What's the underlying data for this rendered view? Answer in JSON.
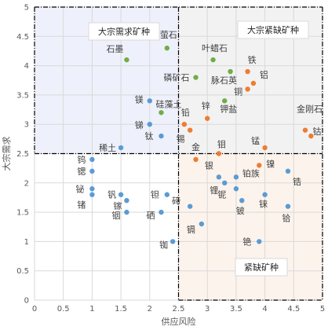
{
  "chart_data": {
    "type": "scatter",
    "xlabel": "供应风险",
    "ylabel": "大宗需求",
    "xlim": [
      0,
      5
    ],
    "ylim": [
      0,
      5
    ],
    "x_ticks": [
      "0",
      "0.5",
      "1",
      "1.5",
      "2",
      "2.5",
      "3",
      "3.5",
      "4",
      "4.5",
      "5"
    ],
    "y_ticks": [
      "0",
      "0.5",
      "1",
      "1.5",
      "2",
      "2.5",
      "3",
      "3.5",
      "4",
      "4.5",
      "5"
    ],
    "grid": true,
    "thresholds": {
      "x": 2.5,
      "y": 2.5
    },
    "regions": [
      {
        "label": "大宗需求矿种",
        "x": [
          0,
          2.5
        ],
        "y": [
          2.5,
          5
        ],
        "fill": "#eef1fb"
      },
      {
        "label": "大宗紧缺矿种",
        "x": [
          2.5,
          5
        ],
        "y": [
          2.5,
          5
        ],
        "fill": "#f2f2f2"
      },
      {
        "label": "紧缺矿种",
        "x": [
          2.5,
          5
        ],
        "y": [
          0,
          2.5
        ],
        "fill": "#fcf3ec"
      }
    ],
    "series": [
      {
        "color": "#70ad47",
        "points": [
          {
            "label": "石墨",
            "x": 1.6,
            "y": 4.1
          },
          {
            "label": "萤石",
            "x": 2.3,
            "y": 4.3
          },
          {
            "label": "叶蜡石",
            "x": 3.1,
            "y": 4.1
          },
          {
            "label": "磷矿石",
            "x": 2.8,
            "y": 3.8
          },
          {
            "label": "脉石英",
            "x": 3.4,
            "y": 3.9
          },
          {
            "label": "硅藻土",
            "x": 2.2,
            "y": 3.2
          },
          {
            "label": "钾盐",
            "x": 3.3,
            "y": 3.4
          }
        ]
      },
      {
        "color": "#ed7d31",
        "points": [
          {
            "label": "铁",
            "x": 3.7,
            "y": 3.9
          },
          {
            "label": "铝",
            "x": 3.8,
            "y": 3.7
          },
          {
            "label": "铜",
            "x": 3.7,
            "y": 3.6
          },
          {
            "label": "铅",
            "x": 2.6,
            "y": 3.0
          },
          {
            "label": "锌",
            "x": 3.0,
            "y": 3.1
          },
          {
            "label": "锡",
            "x": 2.7,
            "y": 2.9
          },
          {
            "label": "金",
            "x": 2.8,
            "y": 2.4
          },
          {
            "label": "钼",
            "x": 3.2,
            "y": 2.5
          },
          {
            "label": "锰",
            "x": 4.0,
            "y": 2.6
          },
          {
            "label": "镍",
            "x": 3.9,
            "y": 2.3
          },
          {
            "label": "金刚石",
            "x": 4.7,
            "y": 2.9
          },
          {
            "label": "钴",
            "x": 4.8,
            "y": 2.8
          }
        ]
      },
      {
        "color": "#5b9bd5",
        "points": [
          {
            "label": "镁",
            "x": 2.0,
            "y": 3.4
          },
          {
            "label": "锑",
            "x": 2.0,
            "y": 3.0
          },
          {
            "label": "钛",
            "x": 2.2,
            "y": 2.8
          },
          {
            "label": "稀土",
            "x": 1.5,
            "y": 2.6
          },
          {
            "label": "钨",
            "x": 1.0,
            "y": 2.4
          },
          {
            "label": "锶",
            "x": 1.0,
            "y": 2.2
          },
          {
            "label": "铋",
            "x": 1.0,
            "y": 1.9
          },
          {
            "label": "锗",
            "x": 1.0,
            "y": 1.8
          },
          {
            "label": "钒",
            "x": 1.5,
            "y": 1.8
          },
          {
            "label": "镓",
            "x": 1.6,
            "y": 1.7
          },
          {
            "label": "铟",
            "x": 1.6,
            "y": 1.5
          },
          {
            "label": "钽",
            "x": 2.3,
            "y": 1.8
          },
          {
            "label": "硒",
            "x": 2.2,
            "y": 1.5
          },
          {
            "label": "碲",
            "x": 2.7,
            "y": 1.6
          },
          {
            "label": "铷",
            "x": 2.4,
            "y": 1.0
          },
          {
            "label": "镉",
            "x": 2.9,
            "y": 1.3
          },
          {
            "label": "银",
            "x": 3.2,
            "y": 2.1
          },
          {
            "label": "铂族",
            "x": 3.5,
            "y": 2.1
          },
          {
            "label": "锂",
            "x": 3.3,
            "y": 2.0
          },
          {
            "label": "铌",
            "x": 3.5,
            "y": 1.9
          },
          {
            "label": "铍",
            "x": 3.6,
            "y": 1.7
          },
          {
            "label": "铼",
            "x": 4.0,
            "y": 1.8
          },
          {
            "label": "锆",
            "x": 4.4,
            "y": 2.2
          },
          {
            "label": "铪",
            "x": 4.4,
            "y": 1.6
          },
          {
            "label": "铯",
            "x": 3.9,
            "y": 1.0
          }
        ]
      }
    ]
  }
}
